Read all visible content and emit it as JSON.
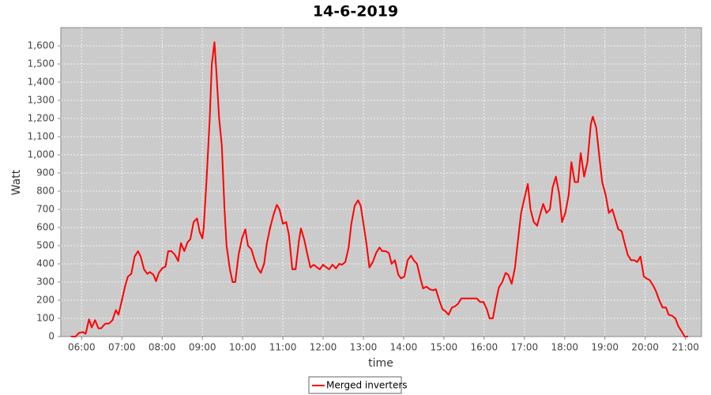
{
  "chart_data": {
    "type": "line",
    "title": "14-6-2019",
    "x_label": "time",
    "y_label": "Watt",
    "x": [
      "05:44",
      "05:51",
      "05:56",
      "06:02",
      "06:06",
      "06:11",
      "06:15",
      "06:20",
      "06:25",
      "06:29",
      "06:35",
      "06:41",
      "06:46",
      "06:51",
      "06:55",
      "07:00",
      "07:05",
      "07:09",
      "07:14",
      "07:19",
      "07:24",
      "07:28",
      "07:33",
      "07:38",
      "07:42",
      "07:47",
      "07:51",
      "07:55",
      "08:00",
      "08:05",
      "08:09",
      "08:14",
      "08:19",
      "08:24",
      "08:28",
      "08:33",
      "08:38",
      "08:42",
      "08:47",
      "08:52",
      "08:56",
      "09:00",
      "09:02",
      "09:06",
      "09:11",
      "09:14",
      "09:18",
      "09:21",
      "09:25",
      "09:29",
      "09:33",
      "09:36",
      "09:41",
      "09:45",
      "09:49",
      "09:54",
      "09:59",
      "10:04",
      "10:08",
      "10:13",
      "10:18",
      "10:22",
      "10:27",
      "10:32",
      "10:36",
      "10:41",
      "10:46",
      "10:51",
      "10:55",
      "11:00",
      "11:05",
      "11:09",
      "11:14",
      "11:19",
      "11:24",
      "11:27",
      "11:32",
      "11:36",
      "11:41",
      "11:46",
      "11:51",
      "11:55",
      "12:00",
      "12:05",
      "12:09",
      "12:14",
      "12:19",
      "12:24",
      "12:28",
      "12:33",
      "12:38",
      "12:42",
      "12:47",
      "12:52",
      "12:56",
      "13:01",
      "13:05",
      "13:09",
      "13:14",
      "13:19",
      "13:24",
      "13:28",
      "13:33",
      "13:38",
      "13:42",
      "13:47",
      "13:52",
      "13:56",
      "14:01",
      "14:06",
      "14:11",
      "14:15",
      "14:20",
      "14:25",
      "14:29",
      "14:34",
      "14:39",
      "14:44",
      "14:48",
      "14:53",
      "14:58",
      "15:02",
      "15:07",
      "15:12",
      "15:16",
      "15:21",
      "15:26",
      "15:31",
      "15:35",
      "15:40",
      "15:45",
      "15:49",
      "15:54",
      "15:59",
      "16:04",
      "16:08",
      "16:13",
      "16:18",
      "16:22",
      "16:27",
      "16:32",
      "16:36",
      "16:41",
      "16:46",
      "16:51",
      "16:55",
      "17:00",
      "17:05",
      "17:09",
      "17:14",
      "17:19",
      "17:24",
      "17:28",
      "17:33",
      "17:38",
      "17:42",
      "17:47",
      "17:52",
      "17:56",
      "18:01",
      "18:06",
      "18:10",
      "18:15",
      "18:20",
      "18:24",
      "18:29",
      "18:34",
      "18:39",
      "18:42",
      "18:47",
      "18:52",
      "18:56",
      "19:01",
      "19:06",
      "19:11",
      "19:15",
      "19:20",
      "19:25",
      "19:29",
      "19:34",
      "19:39",
      "19:44",
      "19:48",
      "19:53",
      "19:58",
      "20:02",
      "20:07",
      "20:12",
      "20:16",
      "20:21",
      "20:26",
      "20:31",
      "20:35",
      "20:40",
      "20:45",
      "20:49",
      "20:54",
      "20:59",
      "21:04"
    ],
    "series": [
      {
        "name": "Merged inverters",
        "color": "#ff0000",
        "values": [
          0,
          0,
          20,
          25,
          15,
          95,
          50,
          90,
          45,
          45,
          70,
          72,
          90,
          145,
          120,
          200,
          280,
          330,
          345,
          440,
          470,
          440,
          370,
          345,
          355,
          340,
          305,
          350,
          375,
          385,
          470,
          470,
          450,
          415,
          515,
          470,
          520,
          535,
          630,
          650,
          575,
          540,
          600,
          850,
          1200,
          1500,
          1620,
          1450,
          1200,
          1050,
          700,
          500,
          370,
          300,
          300,
          450,
          540,
          590,
          500,
          480,
          420,
          380,
          350,
          400,
          510,
          600,
          670,
          725,
          700,
          620,
          630,
          560,
          370,
          370,
          530,
          595,
          530,
          460,
          380,
          395,
          380,
          370,
          395,
          380,
          370,
          395,
          375,
          400,
          395,
          410,
          490,
          620,
          720,
          750,
          720,
          600,
          500,
          380,
          410,
          460,
          490,
          470,
          470,
          460,
          400,
          420,
          340,
          320,
          330,
          420,
          445,
          420,
          400,
          320,
          265,
          275,
          260,
          255,
          260,
          200,
          150,
          140,
          120,
          160,
          165,
          180,
          210,
          210,
          210,
          210,
          210,
          210,
          190,
          190,
          150,
          100,
          100,
          200,
          270,
          300,
          350,
          340,
          290,
          380,
          550,
          680,
          760,
          840,
          700,
          630,
          610,
          680,
          730,
          680,
          700,
          820,
          880,
          780,
          630,
          680,
          780,
          960,
          850,
          850,
          1010,
          880,
          960,
          1170,
          1210,
          1150,
          980,
          850,
          780,
          680,
          700,
          650,
          590,
          580,
          520,
          450,
          420,
          420,
          410,
          440,
          330,
          320,
          310,
          280,
          250,
          200,
          160,
          160,
          120,
          115,
          100,
          60,
          30,
          0,
          0
        ]
      }
    ],
    "xlim": [
      "05:29",
      "21:24"
    ],
    "xticks": [
      "06:00",
      "07:00",
      "08:00",
      "09:00",
      "10:00",
      "11:00",
      "12:00",
      "13:00",
      "14:00",
      "15:00",
      "16:00",
      "17:00",
      "18:00",
      "19:00",
      "20:00",
      "21:00"
    ],
    "ylim": [
      0,
      1700
    ],
    "yticks": [
      0,
      100,
      200,
      300,
      400,
      500,
      600,
      700,
      800,
      900,
      {
        "value": 1000,
        "label": "1,000"
      },
      {
        "value": 1100,
        "label": "1,100"
      },
      {
        "value": 1200,
        "label": "1,200"
      },
      {
        "value": 1300,
        "label": "1,300"
      },
      {
        "value": 1400,
        "label": "1,400"
      },
      {
        "value": 1500,
        "label": "1,500"
      },
      {
        "value": 1600,
        "label": "1,600"
      }
    ],
    "grid": true
  }
}
